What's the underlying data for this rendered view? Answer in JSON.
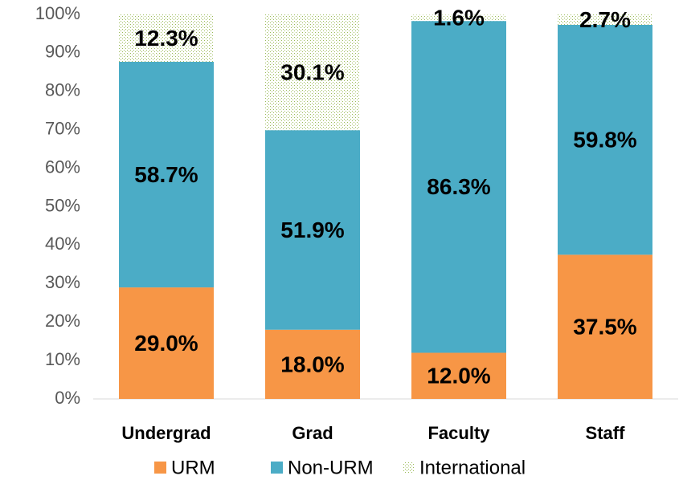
{
  "chart_data": {
    "type": "stacked-bar",
    "categories": [
      "Undergrad",
      "Grad",
      "Faculty",
      "Staff"
    ],
    "series": [
      {
        "name": "URM",
        "color": "#f79646",
        "values": [
          29.0,
          18.0,
          12.0,
          37.5
        ],
        "value_labels": [
          "29.0%",
          "18.0%",
          "12.0%",
          "37.5%"
        ]
      },
      {
        "name": "Non-URM",
        "color": "#4bacc6",
        "values": [
          58.7,
          51.9,
          86.3,
          59.8
        ],
        "value_labels": [
          "58.7%",
          "51.9%",
          "86.3%",
          "59.8%"
        ]
      },
      {
        "name": "International",
        "color": "#9bbb59",
        "pattern": "dotted",
        "values": [
          12.3,
          30.1,
          1.6,
          2.7
        ],
        "value_labels": [
          "12.3%",
          "30.1%",
          "1.6%",
          "2.7%"
        ]
      }
    ],
    "ylim": [
      0,
      100
    ],
    "yticks": [
      {
        "value": 0,
        "label": "0%"
      },
      {
        "value": 10,
        "label": "10%"
      },
      {
        "value": 20,
        "label": "20%"
      },
      {
        "value": 30,
        "label": "30%"
      },
      {
        "value": 40,
        "label": "40%"
      },
      {
        "value": 50,
        "label": "50%"
      },
      {
        "value": 60,
        "label": "60%"
      },
      {
        "value": 70,
        "label": "70%"
      },
      {
        "value": 80,
        "label": "80%"
      },
      {
        "value": 90,
        "label": "90%"
      },
      {
        "value": 100,
        "label": "100%"
      }
    ],
    "grid": false,
    "legend": "bottom"
  }
}
